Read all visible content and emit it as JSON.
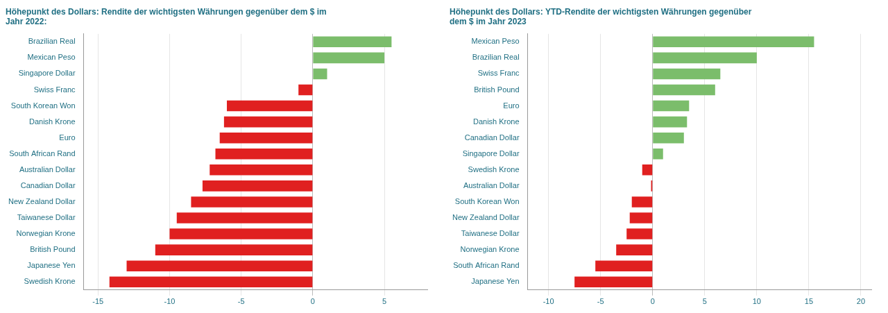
{
  "chart_data": [
    {
      "type": "bar",
      "orientation": "horizontal",
      "title": "Höhepunkt des Dollars: Rendite der wichtigsten Währungen gegenüber dem $ im\nJahr 2022:",
      "categories": [
        "Brazilian Real",
        "Mexican Peso",
        "Singapore Dollar",
        "Swiss Franc",
        "South Korean Won",
        "Danish Krone",
        "Euro",
        "South African Rand",
        "Australian Dollar",
        "Canadian Dollar",
        "New Zealand Dollar",
        "Taiwanese Dollar",
        "Norwegian Krone",
        "British Pound",
        "Japanese Yen",
        "Swedish Krone"
      ],
      "values": [
        5.5,
        5.0,
        1.0,
        -1.0,
        -6.0,
        -6.2,
        -6.5,
        -6.8,
        -7.2,
        -7.7,
        -8.5,
        -9.5,
        -10.0,
        -11.0,
        -13.0,
        -14.2
      ],
      "colors": [
        "#7BBD6B",
        "#7BBD6B",
        "#7BBD6B",
        "#E02020",
        "#E02020",
        "#E02020",
        "#E02020",
        "#E02020",
        "#E02020",
        "#E02020",
        "#E02020",
        "#E02020",
        "#E02020",
        "#E02020",
        "#E02020",
        "#E02020"
      ],
      "xlim": [
        -16,
        8
      ],
      "xticks": [
        -15,
        -10,
        -5,
        0,
        5
      ],
      "grid": true
    },
    {
      "type": "bar",
      "orientation": "horizontal",
      "title": "Höhepunkt des Dollars: YTD-Rendite der wichtigsten Währungen gegenüber\ndem $ im Jahr 2023",
      "categories": [
        "Mexican Peso",
        "Brazilian Real",
        "Swiss Franc",
        "British Pound",
        "Euro",
        "Danish Krone",
        "Canadian Dollar",
        "Singapore Dollar",
        "Swedish Krone",
        "Australian Dollar",
        "South Korean Won",
        "New Zealand Dollar",
        "Taiwanese Dollar",
        "Norwegian Krone",
        "South African Rand",
        "Japanese Yen"
      ],
      "values": [
        15.5,
        10.0,
        6.5,
        6.0,
        3.5,
        3.3,
        3.0,
        1.0,
        -1.0,
        -0.15,
        -2.0,
        -2.2,
        -2.5,
        -3.5,
        -5.5,
        -7.5
      ],
      "colors": [
        "#7BBD6B",
        "#7BBD6B",
        "#7BBD6B",
        "#7BBD6B",
        "#7BBD6B",
        "#7BBD6B",
        "#7BBD6B",
        "#7BBD6B",
        "#E02020",
        "#E02020",
        "#E02020",
        "#E02020",
        "#E02020",
        "#E02020",
        "#E02020",
        "#E02020"
      ],
      "xlim": [
        -12,
        21
      ],
      "xticks": [
        -10,
        -5,
        0,
        5,
        10,
        15,
        20
      ],
      "grid": true
    }
  ]
}
